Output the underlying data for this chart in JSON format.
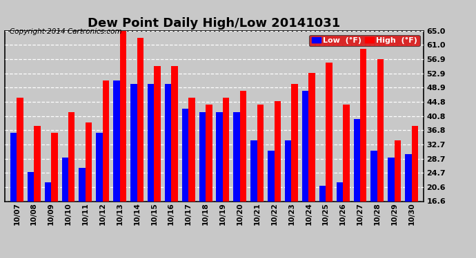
{
  "title": "Dew Point Daily High/Low 20141031",
  "copyright": "Copyright 2014 Cartronics.com",
  "dates": [
    "10/07",
    "10/08",
    "10/09",
    "10/10",
    "10/11",
    "10/12",
    "10/13",
    "10/14",
    "10/15",
    "10/16",
    "10/17",
    "10/18",
    "10/19",
    "10/20",
    "10/21",
    "10/22",
    "10/23",
    "10/24",
    "10/25",
    "10/26",
    "10/27",
    "10/28",
    "10/29",
    "10/30"
  ],
  "low_values": [
    36.0,
    25.0,
    22.0,
    29.0,
    26.0,
    36.0,
    51.0,
    50.0,
    50.0,
    50.0,
    43.0,
    42.0,
    42.0,
    42.0,
    34.0,
    31.0,
    34.0,
    48.0,
    21.0,
    22.0,
    40.0,
    31.0,
    29.0,
    30.0
  ],
  "high_values": [
    46.0,
    38.0,
    36.0,
    42.0,
    39.0,
    51.0,
    65.0,
    63.0,
    55.0,
    55.0,
    46.0,
    44.0,
    46.0,
    48.0,
    44.0,
    45.0,
    50.0,
    53.0,
    56.0,
    44.0,
    60.0,
    57.0,
    34.0,
    38.0
  ],
  "low_color": "#0000ff",
  "high_color": "#ff0000",
  "bg_color": "#c8c8c8",
  "plot_bg_color": "#c8c8c8",
  "ylim_min": 16.6,
  "ylim_max": 65.0,
  "yticks": [
    16.6,
    20.6,
    24.7,
    28.7,
    32.7,
    36.8,
    40.8,
    44.8,
    48.9,
    52.9,
    56.9,
    61.0,
    65.0
  ],
  "title_fontsize": 13,
  "copyright_fontsize": 7.5,
  "legend_low_label": "Low  (°F)",
  "legend_high_label": "High  (°F)",
  "bar_width": 0.38,
  "grid_color": "#ffffff",
  "grid_linestyle": "--",
  "outer_border_color": "#000000"
}
